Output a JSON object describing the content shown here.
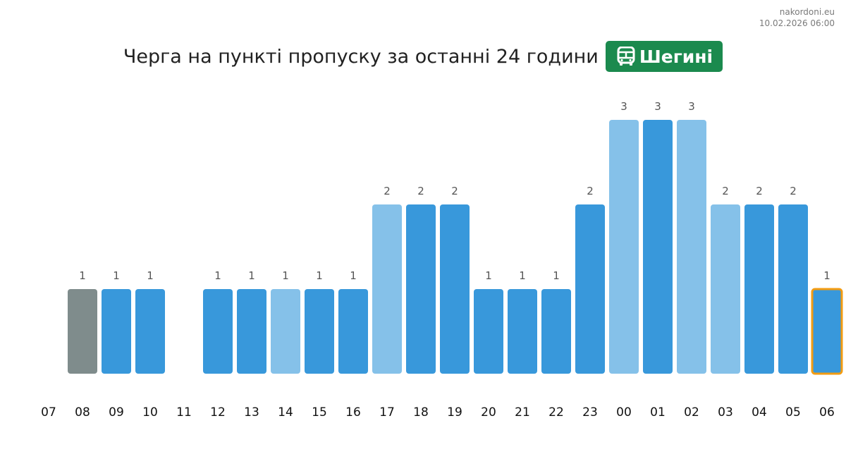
{
  "site": {
    "name": "nakordoni.eu",
    "timestamp": "10.02.2026 06:00"
  },
  "header": {
    "title": "Черга на пункті пропуску за останні 24 години",
    "badge_label": "Шегині",
    "badge_icon": "bus-icon"
  },
  "colors": {
    "blue": "#3898db",
    "light_blue": "#85c1e9",
    "gray": "#7f8c8c",
    "highlight_border": "#f39c12",
    "badge_green": "#1b8a4e"
  },
  "chart_data": {
    "type": "bar",
    "categories": [
      "07",
      "08",
      "09",
      "10",
      "11",
      "12",
      "13",
      "14",
      "15",
      "16",
      "17",
      "18",
      "19",
      "20",
      "21",
      "22",
      "23",
      "00",
      "01",
      "02",
      "03",
      "04",
      "05",
      "06"
    ],
    "values": [
      0,
      1,
      1,
      1,
      0,
      1,
      1,
      1,
      1,
      1,
      2,
      2,
      2,
      1,
      1,
      1,
      2,
      3,
      3,
      3,
      2,
      2,
      2,
      1
    ],
    "bar_styles": [
      "none",
      "gray",
      "blue",
      "blue",
      "none",
      "blue",
      "blue",
      "light",
      "blue",
      "blue",
      "light",
      "blue",
      "blue",
      "blue",
      "blue",
      "blue",
      "blue",
      "light",
      "blue",
      "light",
      "light",
      "blue",
      "blue",
      "current"
    ],
    "ylim": [
      0,
      3
    ]
  }
}
